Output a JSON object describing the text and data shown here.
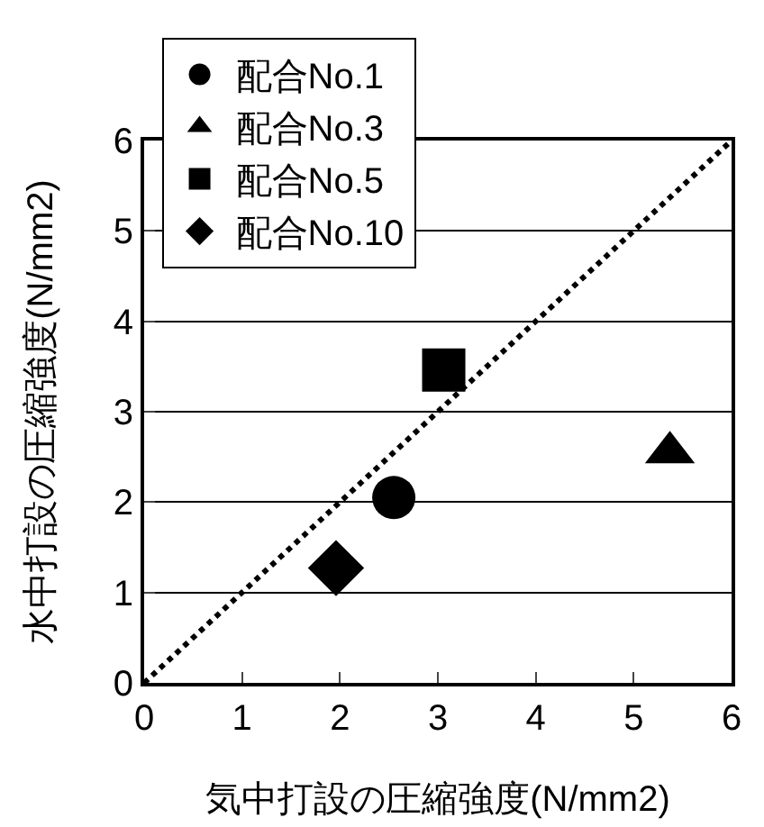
{
  "chart_data": {
    "type": "scatter",
    "xlabel": "気中打設の圧縮強度(N/mm2)",
    "ylabel": "水中打設の圧縮強度(N/mm2)",
    "xlim": [
      0,
      6
    ],
    "ylim": [
      0,
      6
    ],
    "xticks": [
      0,
      1,
      2,
      3,
      4,
      5,
      6
    ],
    "yticks": [
      0,
      1,
      2,
      3,
      4,
      5,
      6
    ],
    "grid": "y",
    "legend": "top left",
    "series": [
      {
        "name": "配合No.1",
        "color": "#000000",
        "marker": "circle",
        "x": [
          2.55
        ],
        "values": [
          2.05
        ]
      },
      {
        "name": "配合No.3",
        "color": "#000000",
        "marker": "triangle",
        "x": [
          5.37
        ],
        "values": [
          2.55
        ]
      },
      {
        "name": "配合No.5",
        "color": "#000000",
        "marker": "square",
        "x": [
          3.06
        ],
        "values": [
          3.46
        ]
      },
      {
        "name": "配合No.10",
        "color": "#000000",
        "marker": "diamond",
        "x": [
          1.96
        ],
        "values": [
          1.27
        ]
      },
      {
        "type": "line",
        "color": "#000000",
        "marker": "none",
        "line_style": "dotted",
        "x": [
          0,
          6
        ],
        "values": [
          0,
          6
        ]
      }
    ]
  }
}
